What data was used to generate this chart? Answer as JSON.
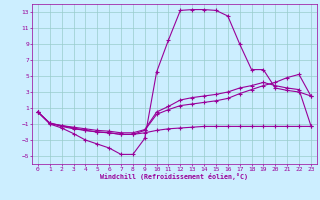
{
  "xlabel": "Windchill (Refroidissement éolien,°C)",
  "bg_color": "#cceeff",
  "line_color": "#990099",
  "grid_color": "#99cccc",
  "xlim": [
    -0.5,
    23.5
  ],
  "ylim": [
    -6,
    14
  ],
  "xticks": [
    0,
    1,
    2,
    3,
    4,
    5,
    6,
    7,
    8,
    9,
    10,
    11,
    12,
    13,
    14,
    15,
    16,
    17,
    18,
    19,
    20,
    21,
    22,
    23
  ],
  "yticks": [
    -5,
    -3,
    -1,
    1,
    3,
    5,
    7,
    9,
    11,
    13
  ],
  "line1_x": [
    0,
    1,
    2,
    3,
    4,
    5,
    6,
    7,
    8,
    9,
    10,
    11,
    12,
    13,
    14,
    15,
    16,
    17,
    18,
    19,
    20,
    21,
    22,
    23
  ],
  "line1_y": [
    0.5,
    -1.0,
    -1.5,
    -2.2,
    -3.0,
    -3.5,
    -4.0,
    -4.8,
    -4.8,
    -2.8,
    5.5,
    9.5,
    13.2,
    13.3,
    13.3,
    13.2,
    12.5,
    9.0,
    5.8,
    5.8,
    3.5,
    3.2,
    3.0,
    2.5
  ],
  "line2_x": [
    0,
    1,
    2,
    3,
    4,
    5,
    6,
    7,
    8,
    9,
    10,
    11,
    12,
    13,
    14,
    15,
    16,
    17,
    18,
    19,
    20,
    21,
    22,
    23
  ],
  "line2_y": [
    0.5,
    -0.9,
    -1.3,
    -1.6,
    -1.8,
    -2.0,
    -2.1,
    -2.3,
    -2.3,
    -2.1,
    -1.8,
    -1.6,
    -1.5,
    -1.4,
    -1.3,
    -1.3,
    -1.3,
    -1.3,
    -1.3,
    -1.3,
    -1.3,
    -1.3,
    -1.3,
    -1.3
  ],
  "line3_x": [
    0,
    1,
    2,
    3,
    4,
    5,
    6,
    7,
    8,
    9,
    10,
    11,
    12,
    13,
    14,
    15,
    16,
    17,
    18,
    19,
    20,
    21,
    22,
    23
  ],
  "line3_y": [
    0.5,
    -0.9,
    -1.2,
    -1.5,
    -1.8,
    -2.0,
    -2.1,
    -2.3,
    -2.3,
    -1.8,
    0.2,
    0.8,
    1.3,
    1.5,
    1.7,
    1.9,
    2.2,
    2.8,
    3.3,
    3.8,
    4.2,
    4.8,
    5.2,
    2.5
  ],
  "line4_x": [
    0,
    1,
    2,
    3,
    4,
    5,
    6,
    7,
    8,
    9,
    10,
    11,
    12,
    13,
    14,
    15,
    16,
    17,
    18,
    19,
    20,
    21,
    22,
    23
  ],
  "line4_y": [
    0.5,
    -0.9,
    -1.2,
    -1.4,
    -1.6,
    -1.8,
    -1.9,
    -2.1,
    -2.1,
    -1.7,
    0.5,
    1.2,
    2.0,
    2.3,
    2.5,
    2.7,
    3.0,
    3.5,
    3.8,
    4.2,
    3.8,
    3.5,
    3.3,
    -1.2
  ]
}
